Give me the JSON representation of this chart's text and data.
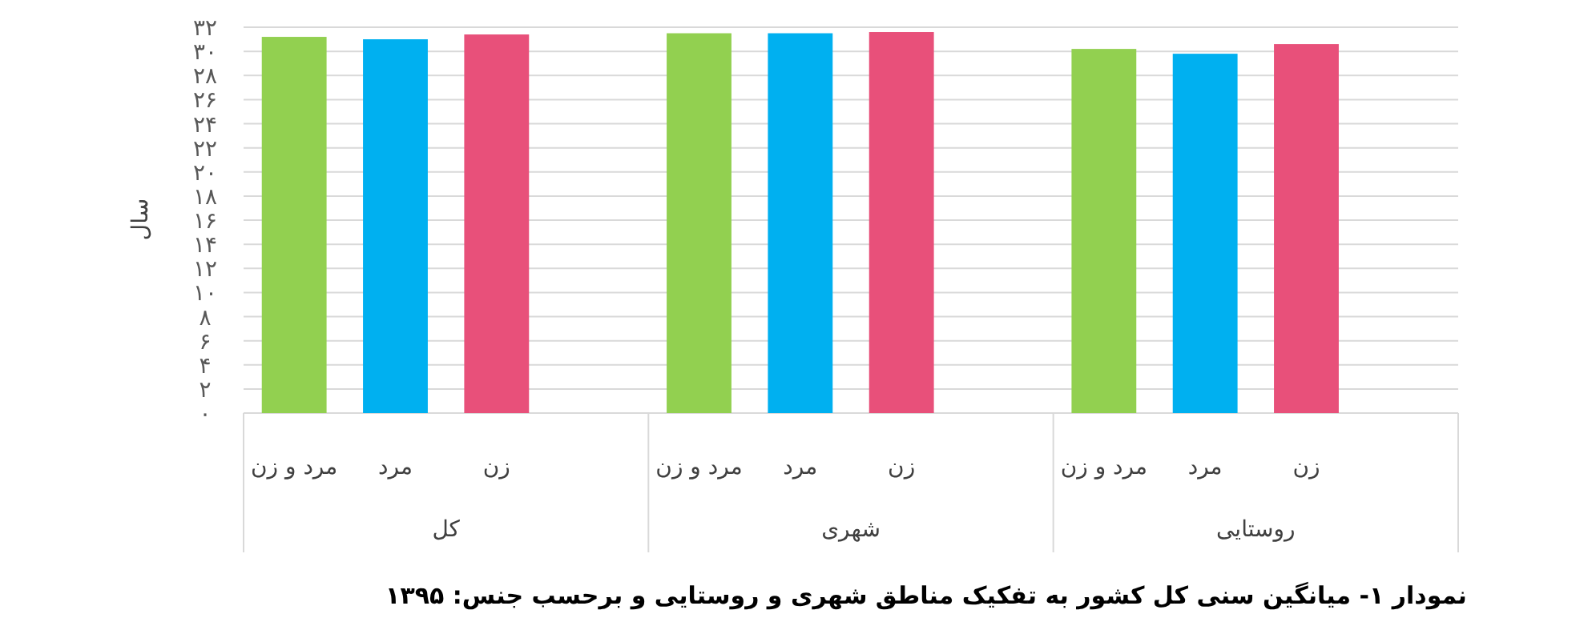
{
  "chart_data": {
    "type": "bar",
    "title": "نمودار ۱- میانگین سنی کل کشور به تفکیک مناطق شهری و روستایی و برحسب جنس: ۱۳۹۵",
    "ylabel": "سال",
    "categories": [
      "مرد و زن",
      "مرد",
      "زن",
      "مرد و زن",
      "مرد",
      "زن",
      "مرد و زن",
      "مرد",
      "زن"
    ],
    "values": [
      31.2,
      31.0,
      31.4,
      31.5,
      31.5,
      31.6,
      30.2,
      29.8,
      30.6
    ],
    "colors": [
      "#92d050",
      "#00b0f0",
      "#e8507a",
      "#92d050",
      "#00b0f0",
      "#e8507a",
      "#92d050",
      "#00b0f0",
      "#e8507a"
    ],
    "ylim": [
      0,
      32
    ],
    "yticks": [
      {
        "value": 0,
        "label": "۰"
      },
      {
        "value": 2,
        "label": "۲"
      },
      {
        "value": 4,
        "label": "۴"
      },
      {
        "value": 6,
        "label": "۶"
      },
      {
        "value": 8,
        "label": "۸"
      },
      {
        "value": 10,
        "label": "۱۰"
      },
      {
        "value": 12,
        "label": "۱۲"
      },
      {
        "value": 14,
        "label": "۱۴"
      },
      {
        "value": 16,
        "label": "۱۶"
      },
      {
        "value": 18,
        "label": "۱۸"
      },
      {
        "value": 20,
        "label": "۲۰"
      },
      {
        "value": 22,
        "label": "۲۲"
      },
      {
        "value": 24,
        "label": "۲۴"
      },
      {
        "value": 26,
        "label": "۲۶"
      },
      {
        "value": 28,
        "label": "۲۸"
      },
      {
        "value": 30,
        "label": "۳۰"
      },
      {
        "value": 32,
        "label": "۳۲"
      }
    ],
    "grid": "y",
    "annotations": [
      "کل",
      "شهری",
      "روستایی"
    ]
  }
}
